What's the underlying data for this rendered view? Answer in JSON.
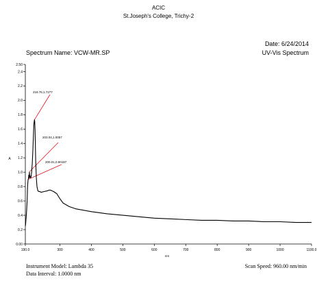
{
  "header": {
    "org": "ACIC",
    "college": "St.Joseph's College, Trichy-2",
    "date": "Date: 6/24/2014",
    "spectrum_name": "Spectrum Name: VCW-MR.SP",
    "spectrum_type": "UV-Vis Spectrum"
  },
  "footer": {
    "instrument": "Instrument Model: Lambda 35",
    "interval": "Data Interval: 1.0000 nm",
    "scan_speed": "Scan Speed: 960.00 nm/min"
  },
  "chart_data": {
    "type": "line",
    "title": "",
    "xlabel": "nm",
    "ylabel": "A",
    "xlim": [
      190,
      1100
    ],
    "ylim": [
      0,
      2.5
    ],
    "x_ticks": [
      190,
      300,
      400,
      500,
      600,
      700,
      800,
      900,
      1000,
      1100
    ],
    "x_tick_labels": [
      "190.0",
      "300",
      "400",
      "500",
      "600",
      "700",
      "800",
      "900",
      "1000",
      "1100.0"
    ],
    "y_ticks": [
      0,
      0.2,
      0.4,
      0.6,
      0.8,
      1.0,
      1.2,
      1.4,
      1.6,
      1.8,
      2.0,
      2.2,
      2.4,
      2.5
    ],
    "y_tick_labels": [
      "0.00",
      "0.2",
      "0.4",
      "0.6",
      "0.8",
      "1.0",
      "1.2",
      "1.4",
      "1.6",
      "1.8",
      "2.0",
      "2.2",
      "2.4",
      "2.50"
    ],
    "grid": false,
    "legend": "none",
    "line_color": "#000000",
    "annotation_color": "#e8101a",
    "series": [
      {
        "x": [
          190,
          191,
          192,
          194,
          196,
          197,
          198,
          199,
          200,
          201,
          202,
          203,
          204,
          205,
          206,
          208,
          210,
          212,
          214,
          216,
          217,
          218,
          219,
          220,
          221,
          222,
          223,
          225,
          227,
          230,
          233,
          236,
          240,
          250,
          260,
          265,
          270,
          275,
          280,
          290,
          300,
          310,
          330,
          350,
          400,
          450,
          500,
          550,
          600,
          650,
          700,
          750,
          800,
          850,
          900,
          950,
          1000,
          1050,
          1100
        ],
        "y": [
          0.25,
          0.28,
          0.34,
          0.45,
          0.62,
          0.78,
          0.86,
          0.9,
          0.91,
          0.96,
          0.92,
          1.0,
          0.93,
          0.95,
          0.92,
          0.93,
          1.0,
          1.12,
          1.3,
          1.55,
          1.65,
          1.7,
          1.73,
          1.7,
          1.58,
          1.35,
          1.15,
          0.92,
          0.8,
          0.74,
          0.73,
          0.73,
          0.72,
          0.73,
          0.74,
          0.75,
          0.75,
          0.74,
          0.73,
          0.7,
          0.63,
          0.57,
          0.52,
          0.49,
          0.45,
          0.42,
          0.4,
          0.38,
          0.36,
          0.35,
          0.34,
          0.33,
          0.33,
          0.32,
          0.32,
          0.31,
          0.31,
          0.3,
          0.3
        ]
      }
    ],
    "annotations": [
      {
        "label": "218.76,1.7277",
        "x": 218.76,
        "y": 1.7277
      },
      {
        "label": "203.04,1.0057",
        "x": 203.04,
        "y": 1.0057
      },
      {
        "label": "200.01,0.90187",
        "x": 200.01,
        "y": 0.90187
      }
    ]
  }
}
